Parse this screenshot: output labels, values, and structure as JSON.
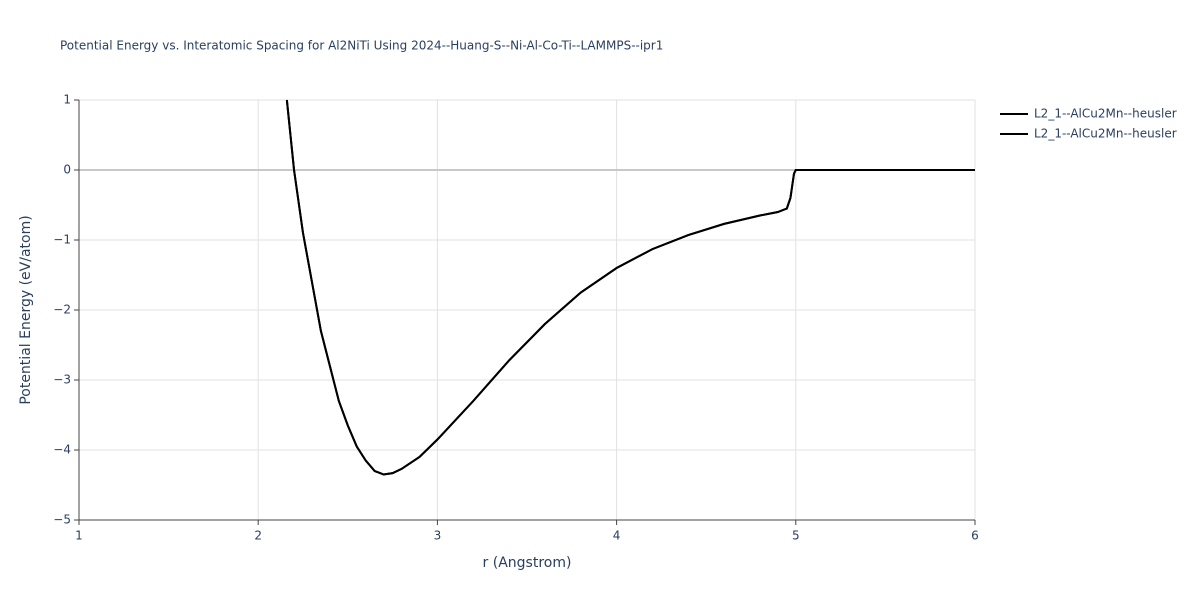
{
  "chart_data": {
    "type": "line",
    "title": "Potential Energy vs. Interatomic Spacing for Al2NiTi Using 2024--Huang-S--Ni-Al-Co-Ti--LAMMPS--ipr1",
    "x_label": "r (Angstrom)",
    "y_label": "Potential Energy (eV/atom)",
    "x": [
      2.16,
      2.2,
      2.25,
      2.3,
      2.35,
      2.4,
      2.45,
      2.5,
      2.55,
      2.6,
      2.65,
      2.7,
      2.75,
      2.8,
      2.9,
      3.0,
      3.2,
      3.4,
      3.6,
      3.8,
      4.0,
      4.2,
      4.4,
      4.6,
      4.8,
      4.9,
      4.95,
      4.97,
      4.99,
      5.0,
      6.0
    ],
    "series": [
      {
        "name": "L2_1--AlCu2Mn--heusler",
        "color": "#000000",
        "values": [
          1,
          0,
          -0.9,
          -1.6,
          -2.3,
          -2.8,
          -3.3,
          -3.65,
          -3.95,
          -4.15,
          -4.3,
          -4.35,
          -4.33,
          -4.27,
          -4.1,
          -3.85,
          -3.3,
          -2.72,
          -2.2,
          -1.75,
          -1.4,
          -1.13,
          -0.93,
          -0.77,
          -0.65,
          -0.6,
          -0.55,
          -0.4,
          -0.05,
          0,
          0
        ]
      },
      {
        "name": "L2_1--AlCu2Mn--heusler",
        "color": "#000000",
        "values": [
          1,
          0,
          -0.9,
          -1.6,
          -2.3,
          -2.8,
          -3.3,
          -3.65,
          -3.95,
          -4.15,
          -4.3,
          -4.35,
          -4.33,
          -4.27,
          -4.1,
          -3.85,
          -3.3,
          -2.72,
          -2.2,
          -1.75,
          -1.4,
          -1.13,
          -0.93,
          -0.77,
          -0.65,
          -0.6,
          -0.55,
          -0.4,
          -0.05,
          0,
          0
        ]
      }
    ],
    "xlim": [
      1,
      6
    ],
    "xticks": [
      1,
      2,
      3,
      4,
      5,
      6
    ],
    "ylim": [
      -5,
      1
    ],
    "yticks": [
      {
        "value": -5,
        "label": "−5"
      },
      {
        "value": -4,
        "label": "−4"
      },
      {
        "value": -3,
        "label": "−3"
      },
      {
        "value": -2,
        "label": "−2"
      },
      {
        "value": -1,
        "label": "−1"
      },
      0,
      1
    ],
    "grid": true,
    "legend": "right"
  }
}
